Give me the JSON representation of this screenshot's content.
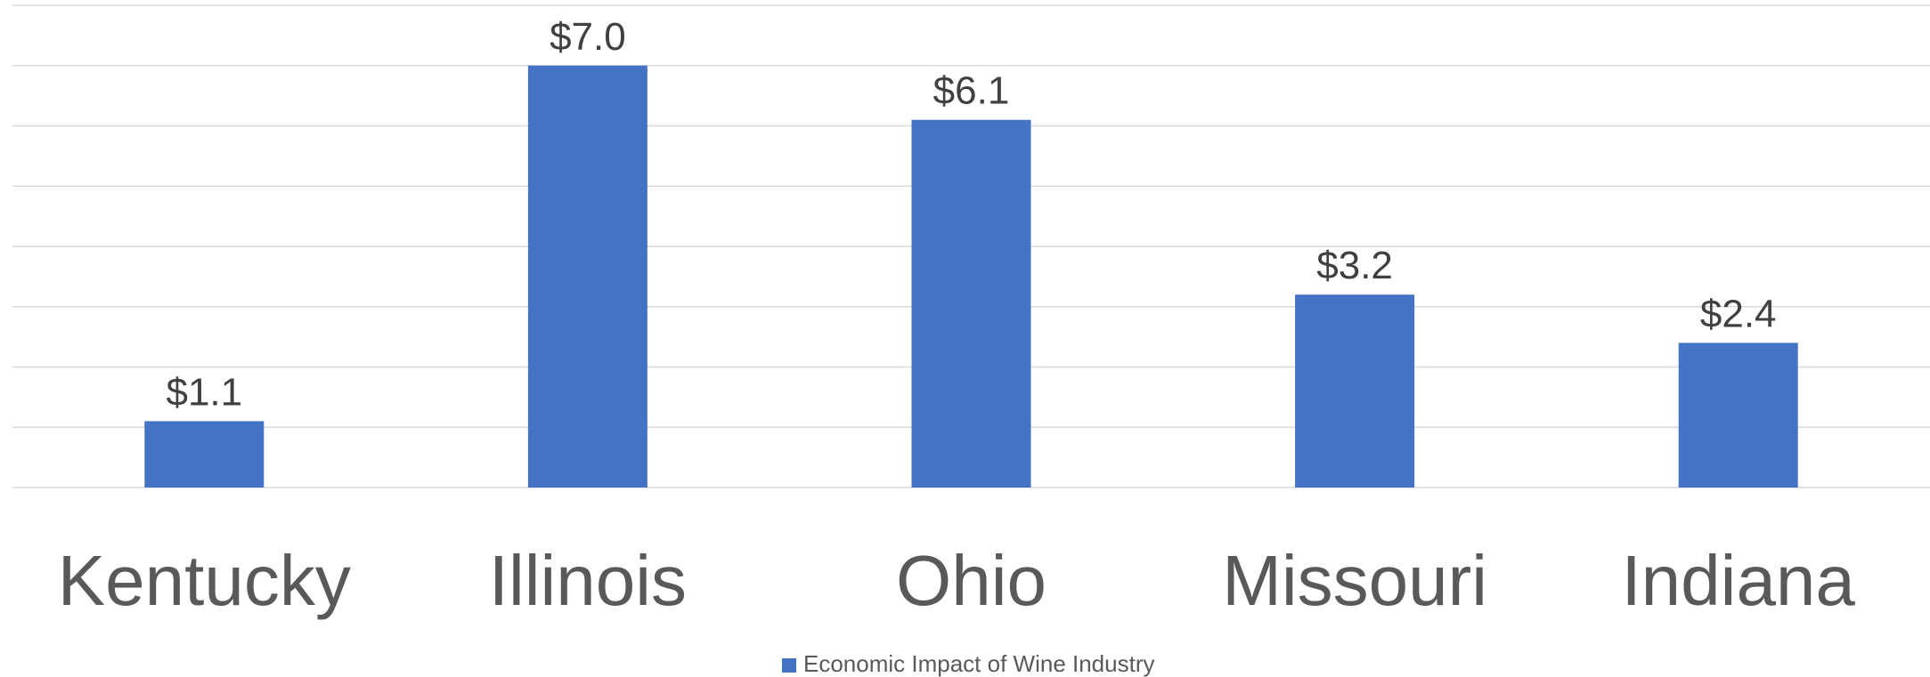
{
  "chart_data": {
    "type": "bar",
    "categories": [
      "Kentucky",
      "Illinois",
      "Ohio",
      "Missouri",
      "Indiana"
    ],
    "series": [
      {
        "name": "Economic Impact of Wine Industry",
        "values": [
          1.1,
          7.0,
          6.1,
          3.2,
          2.4
        ],
        "data_labels": [
          "$1.1",
          "$7.0",
          "$6.1",
          "$3.2",
          "$2.4"
        ],
        "color": "#4472C4"
      }
    ],
    "ylim": [
      0,
      8
    ],
    "grid": true,
    "legend": "bottom"
  }
}
